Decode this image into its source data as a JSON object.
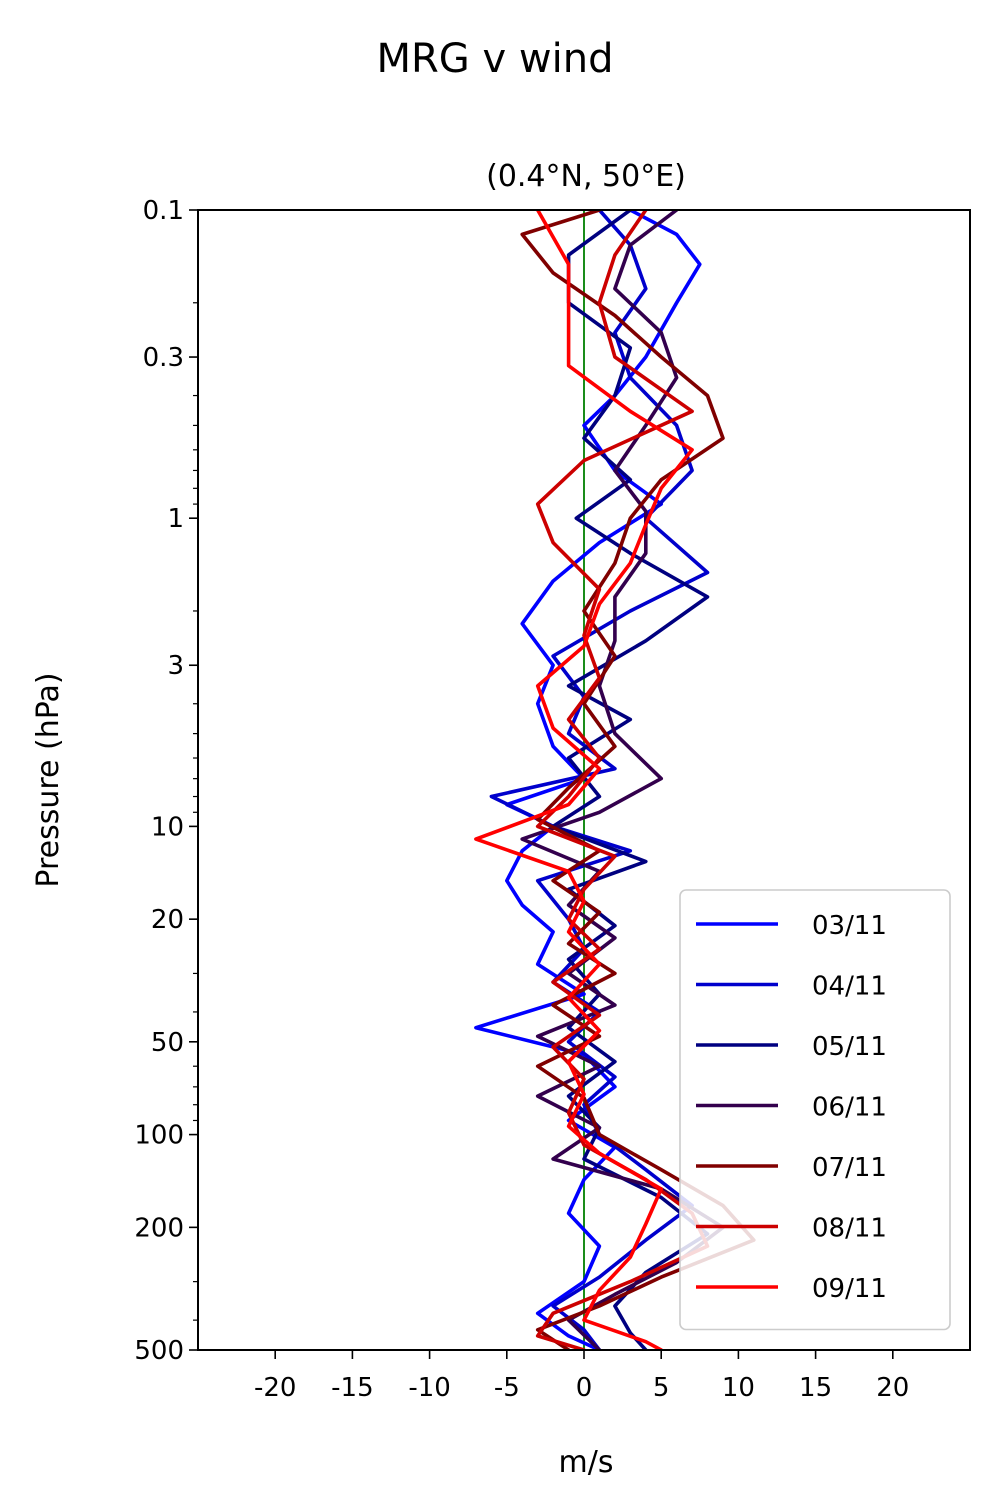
{
  "chart_data": {
    "type": "line",
    "title": "MRG v wind",
    "subtitle": "(0.4°N, 50°E)",
    "xlabel": "m/s",
    "ylabel": "Pressure (hPa)",
    "xlim": [
      -25,
      25
    ],
    "ylim": [
      500,
      0.1
    ],
    "yscale": "log",
    "x_ticks": [
      -20,
      -15,
      -10,
      -5,
      0,
      5,
      10,
      15,
      20
    ],
    "x_tick_labels": [
      "-20",
      "-15",
      "-10",
      "-5",
      "0",
      "5",
      "10",
      "15",
      "20"
    ],
    "y_ticks": [
      0.1,
      0.3,
      1,
      3,
      10,
      20,
      50,
      100,
      200,
      500
    ],
    "y_tick_labels": [
      "0.1",
      "0.3",
      "1",
      "3",
      "10",
      "20",
      "50",
      "100",
      "200",
      "500"
    ],
    "zero_line_color": "#008000",
    "legend_position": "lower-right",
    "grid": false,
    "series": [
      {
        "name": "03/11",
        "color": "#0000ff",
        "p": [
          0.1,
          0.12,
          0.15,
          0.2,
          0.3,
          0.4,
          0.5,
          0.7,
          0.9,
          1.2,
          1.6,
          2.2,
          3,
          4,
          5.5,
          7,
          8.5,
          10,
          12,
          15,
          18,
          22,
          28,
          35,
          45,
          55,
          70,
          90,
          110,
          140,
          180,
          230,
          300,
          380,
          450,
          500
        ],
        "v": [
          3,
          6,
          7.5,
          6,
          4,
          2,
          0,
          2,
          5,
          1,
          -2,
          -4,
          -2,
          -3,
          -2,
          0,
          -5,
          -2,
          -4,
          -5,
          -4,
          -2,
          -3,
          0,
          -7,
          0,
          2,
          -1,
          2,
          0,
          -1,
          1,
          0,
          -3,
          -1,
          1
        ]
      },
      {
        "name": "04/11",
        "color": "#0000cc",
        "p": [
          0.1,
          0.13,
          0.18,
          0.25,
          0.35,
          0.5,
          0.7,
          1,
          1.5,
          2,
          2.8,
          3.8,
          5,
          6.5,
          8,
          10,
          12,
          15,
          20,
          25,
          32,
          40,
          50,
          65,
          80,
          100,
          130,
          170,
          220,
          290,
          360,
          430,
          500
        ],
        "v": [
          1,
          3,
          4,
          2,
          3,
          6,
          7,
          4,
          8,
          3,
          -2,
          0,
          -1,
          2,
          -6,
          -2,
          3,
          -3,
          -1,
          0,
          -2,
          1,
          -1,
          2,
          0,
          1,
          4,
          7,
          4,
          1,
          -2,
          0,
          1
        ]
      },
      {
        "name": "05/11",
        "color": "#000080",
        "p": [
          0.1,
          0.14,
          0.2,
          0.28,
          0.4,
          0.55,
          0.75,
          1,
          1.3,
          1.8,
          2.5,
          3.5,
          4.5,
          6,
          8,
          10,
          13,
          16,
          21,
          27,
          35,
          45,
          58,
          75,
          95,
          120,
          160,
          210,
          280,
          360,
          440,
          500
        ],
        "v": [
          3,
          -1,
          -1,
          3,
          2,
          0,
          3,
          -0.5,
          3,
          8,
          4,
          -1,
          3,
          -1,
          1,
          -2,
          4,
          -1,
          2,
          -1,
          1,
          -1,
          2,
          -1,
          1,
          0,
          5,
          8,
          4,
          2,
          3,
          4
        ]
      },
      {
        "name": "06/11",
        "color": "#33004d",
        "p": [
          0.1,
          0.13,
          0.18,
          0.25,
          0.35,
          0.5,
          0.7,
          0.95,
          1.3,
          1.8,
          2.5,
          3.5,
          5,
          7,
          9,
          11,
          14,
          18,
          23,
          30,
          38,
          48,
          60,
          75,
          95,
          120,
          150,
          200,
          260,
          330,
          400,
          500
        ],
        "v": [
          6,
          3,
          2,
          5,
          6,
          4,
          2,
          4,
          4,
          2,
          2,
          1,
          2,
          5,
          1,
          -4,
          1,
          -1,
          2,
          -1,
          2,
          -3,
          1,
          -3,
          1,
          -2,
          5,
          9,
          6,
          2,
          -1,
          1
        ]
      },
      {
        "name": "07/11",
        "color": "#800000",
        "p": [
          0.1,
          0.12,
          0.16,
          0.22,
          0.3,
          0.4,
          0.55,
          0.75,
          1,
          1.4,
          2,
          2.8,
          4,
          5.5,
          7.5,
          9.5,
          12,
          15,
          19,
          24,
          30,
          38,
          48,
          60,
          76,
          100,
          130,
          170,
          220,
          290,
          360,
          430,
          500
        ],
        "v": [
          1,
          -4,
          -2,
          2,
          5,
          8,
          9,
          5,
          3,
          2,
          0,
          2,
          0,
          2,
          -1,
          -3,
          1,
          -2,
          1,
          -1,
          2,
          -2,
          1,
          -3,
          0,
          1,
          5,
          9,
          11,
          5,
          1,
          -3,
          -1
        ]
      },
      {
        "name": "08/11",
        "color": "#cc0000",
        "p": [
          0.1,
          0.14,
          0.2,
          0.3,
          0.45,
          0.65,
          0.9,
          1.2,
          1.7,
          2.4,
          3.3,
          4.5,
          6,
          8,
          10,
          12.5,
          16,
          20,
          25,
          32,
          41,
          52,
          66,
          85,
          108,
          140,
          180,
          230,
          300,
          380,
          450,
          500
        ],
        "v": [
          4,
          2,
          1,
          2,
          7,
          0,
          -3,
          -2,
          1,
          0,
          1,
          -1,
          1,
          -1,
          -3,
          2,
          0,
          -1,
          1,
          -2,
          1,
          -2,
          0,
          -1,
          0,
          4,
          7,
          8,
          3,
          -2,
          -3,
          0
        ]
      },
      {
        "name": "09/11",
        "color": "#ff0000",
        "p": [
          0.1,
          0.15,
          0.22,
          0.32,
          0.45,
          0.6,
          0.8,
          1.05,
          1.4,
          1.9,
          2.6,
          3.5,
          4.8,
          6.5,
          8.5,
          11,
          14,
          17.5,
          22,
          28,
          36,
          46,
          58,
          74,
          94,
          115,
          150,
          195,
          250,
          320,
          400,
          470,
          500
        ],
        "v": [
          -3,
          -1,
          -1,
          -1,
          3,
          7,
          5,
          4,
          3,
          1,
          0,
          -3,
          -2,
          1,
          -1,
          -7,
          -1,
          0,
          -1,
          1,
          -1,
          1,
          -1,
          0,
          -1,
          1,
          5,
          4,
          3,
          1,
          0,
          4,
          5
        ]
      }
    ]
  }
}
